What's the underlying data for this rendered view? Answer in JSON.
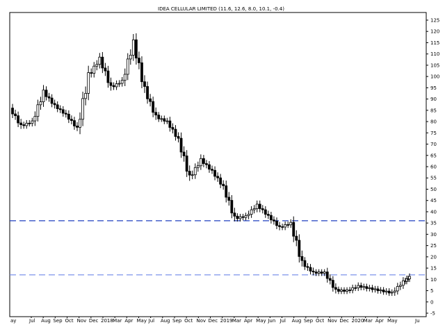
{
  "chart_data": {
    "type": "candlestick",
    "title": "IDEA CELLULAR LIMITED (11.6, 12.6, 8.0, 10.1, -0.4)",
    "y_axis": {
      "side": "right",
      "min": -5,
      "max": 125,
      "ticks": [
        "125",
        "120",
        "115",
        "110",
        "105",
        "100",
        "95",
        "90",
        "85",
        "80",
        "75",
        "70",
        "65",
        "60",
        "55",
        "50",
        "45",
        "40",
        "35",
        "30",
        "25",
        "20",
        "15",
        "10",
        "5",
        "0",
        "-5"
      ]
    },
    "x_labels": [
      "Jul",
      "Aug",
      "Sep",
      "Oct",
      "Nov",
      "Dec",
      "2018",
      "Mar",
      "Apr",
      "May",
      "Jul",
      "Aug",
      "Sep",
      "Oct",
      "Nov",
      "Dec",
      "2019",
      "Mar",
      "Apr",
      "May",
      "Jun",
      "Jul",
      "Aug",
      "Sep",
      "Oct",
      "Nov",
      "Dec",
      "2020",
      "Mar",
      "Apr",
      "May"
    ],
    "x_labels_edge": [
      "ay",
      "Ju"
    ],
    "horizontal_lines": [
      {
        "value": 36,
        "style": "dashed",
        "color": "#1f3fbf"
      },
      {
        "value": 12,
        "style": "dashed",
        "color": "#6f86e8"
      }
    ],
    "series": [
      {
        "name": "",
        "points": [
          {
            "x": 0,
            "y": 86
          },
          {
            "x": 4,
            "y": 78
          },
          {
            "x": 8,
            "y": 80
          },
          {
            "x": 12,
            "y": 93
          },
          {
            "x": 16,
            "y": 87
          },
          {
            "x": 20,
            "y": 83
          },
          {
            "x": 24,
            "y": 77
          },
          {
            "x": 28,
            "y": 100
          },
          {
            "x": 32,
            "y": 108
          },
          {
            "x": 36,
            "y": 95
          },
          {
            "x": 40,
            "y": 98
          },
          {
            "x": 44,
            "y": 115
          },
          {
            "x": 48,
            "y": 94
          },
          {
            "x": 52,
            "y": 82
          },
          {
            "x": 56,
            "y": 80
          },
          {
            "x": 60,
            "y": 72
          },
          {
            "x": 64,
            "y": 55
          },
          {
            "x": 68,
            "y": 63
          },
          {
            "x": 72,
            "y": 58
          },
          {
            "x": 76,
            "y": 51
          },
          {
            "x": 80,
            "y": 37
          },
          {
            "x": 84,
            "y": 38
          },
          {
            "x": 88,
            "y": 43
          },
          {
            "x": 92,
            "y": 38
          },
          {
            "x": 96,
            "y": 33
          },
          {
            "x": 100,
            "y": 35
          },
          {
            "x": 104,
            "y": 17
          },
          {
            "x": 108,
            "y": 13
          },
          {
            "x": 112,
            "y": 13
          },
          {
            "x": 116,
            "y": 5
          },
          {
            "x": 120,
            "y": 5
          },
          {
            "x": 124,
            "y": 7
          },
          {
            "x": 128,
            "y": 6
          },
          {
            "x": 132,
            "y": 5
          },
          {
            "x": 136,
            "y": 4
          },
          {
            "x": 140,
            "y": 9
          },
          {
            "x": 142,
            "y": 11
          }
        ]
      }
    ]
  }
}
